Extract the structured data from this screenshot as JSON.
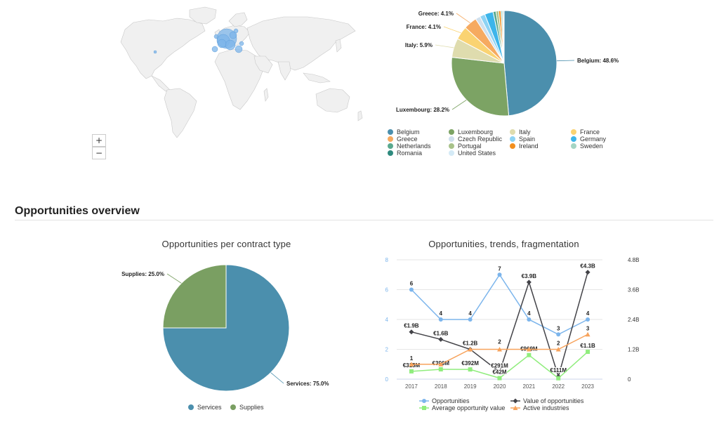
{
  "map": {
    "zoom_in_label": "+",
    "zoom_out_label": "−",
    "land_color": "#f0f0f0",
    "bubble_color": "#7eb5ea"
  },
  "country_pie": {
    "slices": [
      {
        "name": "Belgium",
        "value": 48.6,
        "color": "#4b8fad",
        "label": "Belgium: 48.6%"
      },
      {
        "name": "Luxembourg",
        "value": 28.2,
        "color": "#7ca364",
        "label": "Luxembourg: 28.2%"
      },
      {
        "name": "Italy",
        "value": 5.9,
        "color": "#dfdcae",
        "label": "Italy: 5.9%"
      },
      {
        "name": "France",
        "value": 4.1,
        "color": "#fad372",
        "label": "France: 4.1%"
      },
      {
        "name": "Greece",
        "value": 4.1,
        "color": "#f6aa60",
        "label": "Greece: 4.1%"
      },
      {
        "name": "Czech Republic",
        "value": 1.5,
        "color": "#cfe0ee",
        "label": ""
      },
      {
        "name": "Spain",
        "value": 1.6,
        "color": "#8dd3f4",
        "label": ""
      },
      {
        "name": "Germany",
        "value": 2.6,
        "color": "#3db5ea",
        "label": ""
      },
      {
        "name": "Netherlands",
        "value": 0.9,
        "color": "#5aa98e",
        "label": ""
      },
      {
        "name": "Portugal",
        "value": 0.8,
        "color": "#a8c28a",
        "label": ""
      },
      {
        "name": "Ireland",
        "value": 0.7,
        "color": "#f28f1e",
        "label": ""
      },
      {
        "name": "Sweden",
        "value": 0.5,
        "color": "#a4d5c4",
        "label": ""
      },
      {
        "name": "Romania",
        "value": 0.3,
        "color": "#2e8a7e",
        "label": ""
      },
      {
        "name": "United States",
        "value": 0.2,
        "color": "#d4eaf6",
        "label": ""
      }
    ],
    "legend": [
      "Belgium",
      "Luxembourg",
      "Italy",
      "France",
      "Greece",
      "Czech Republic",
      "Spain",
      "Germany",
      "Netherlands",
      "Portugal",
      "Ireland",
      "Sweden",
      "Romania",
      "United States"
    ]
  },
  "section_title": "Opportunities overview",
  "contract_pie": {
    "title": "Opportunities per contract type",
    "slices": [
      {
        "name": "Services",
        "value": 75.0,
        "color": "#4b8fad",
        "label": "Services: 75.0%"
      },
      {
        "name": "Supplies",
        "value": 25.0,
        "color": "#7a9f62",
        "label": "Supplies: 25.0%"
      }
    ],
    "legend": [
      "Services",
      "Supplies"
    ]
  },
  "chart_data": [
    {
      "type": "pie",
      "title": "",
      "categories": [
        "Belgium",
        "Luxembourg",
        "Italy",
        "France",
        "Greece",
        "Czech Republic",
        "Spain",
        "Germany",
        "Netherlands",
        "Portugal",
        "Ireland",
        "Sweden",
        "Romania",
        "United States"
      ],
      "values": [
        48.6,
        28.2,
        5.9,
        4.1,
        4.1,
        1.5,
        1.6,
        2.6,
        0.9,
        0.8,
        0.7,
        0.5,
        0.3,
        0.2
      ]
    },
    {
      "type": "pie",
      "title": "Opportunities per contract type",
      "categories": [
        "Services",
        "Supplies"
      ],
      "values": [
        75.0,
        25.0
      ]
    },
    {
      "type": "line",
      "title": "Opportunities, trends, fragmentation",
      "categories": [
        "2017",
        "2018",
        "2019",
        "2020",
        "2021",
        "2022",
        "2023"
      ],
      "y_left": {
        "ticks": [
          "0",
          "2",
          "4",
          "6",
          "8"
        ],
        "lim": [
          0,
          8
        ]
      },
      "y_right": {
        "ticks": [
          "0",
          "1.2B",
          "2.4B",
          "3.6B",
          "4.8B"
        ],
        "lim": [
          0,
          4.8
        ]
      },
      "series": [
        {
          "name": "Opportunities",
          "axis": "left",
          "color": "#7cb5ec",
          "marker": "circle",
          "values": [
            6,
            4,
            4,
            7,
            4,
            3,
            4
          ],
          "labels": [
            "6",
            "4",
            "4",
            "7",
            "4",
            "3",
            "4"
          ]
        },
        {
          "name": "Value of opportunities",
          "axis": "right",
          "color": "#434348",
          "marker": "diamond",
          "values": [
            1.9,
            1.6,
            1.2,
            0.29,
            3.9,
            0.11,
            4.3
          ],
          "labels": [
            "€1.9B",
            "€1.6B",
            "€1.2B",
            "€291M",
            "€3.9B",
            "€111M",
            "€4.3B"
          ]
        },
        {
          "name": "Average opportunity value",
          "axis": "right",
          "color": "#90ed7d",
          "marker": "square",
          "values": [
            0.315,
            0.396,
            0.392,
            0.042,
            0.969,
            0.037,
            1.1
          ],
          "labels": [
            "€315M",
            "€396M",
            "€392M",
            "€42M",
            "€969M",
            "",
            "€1.1B"
          ]
        },
        {
          "name": "Active industries",
          "axis": "left",
          "color": "#f7a35c",
          "marker": "triangle",
          "values": [
            1,
            1,
            2,
            2,
            2,
            2,
            3
          ],
          "labels": [
            "1",
            "",
            "",
            "2",
            "",
            "2",
            "3"
          ]
        }
      ]
    }
  ]
}
